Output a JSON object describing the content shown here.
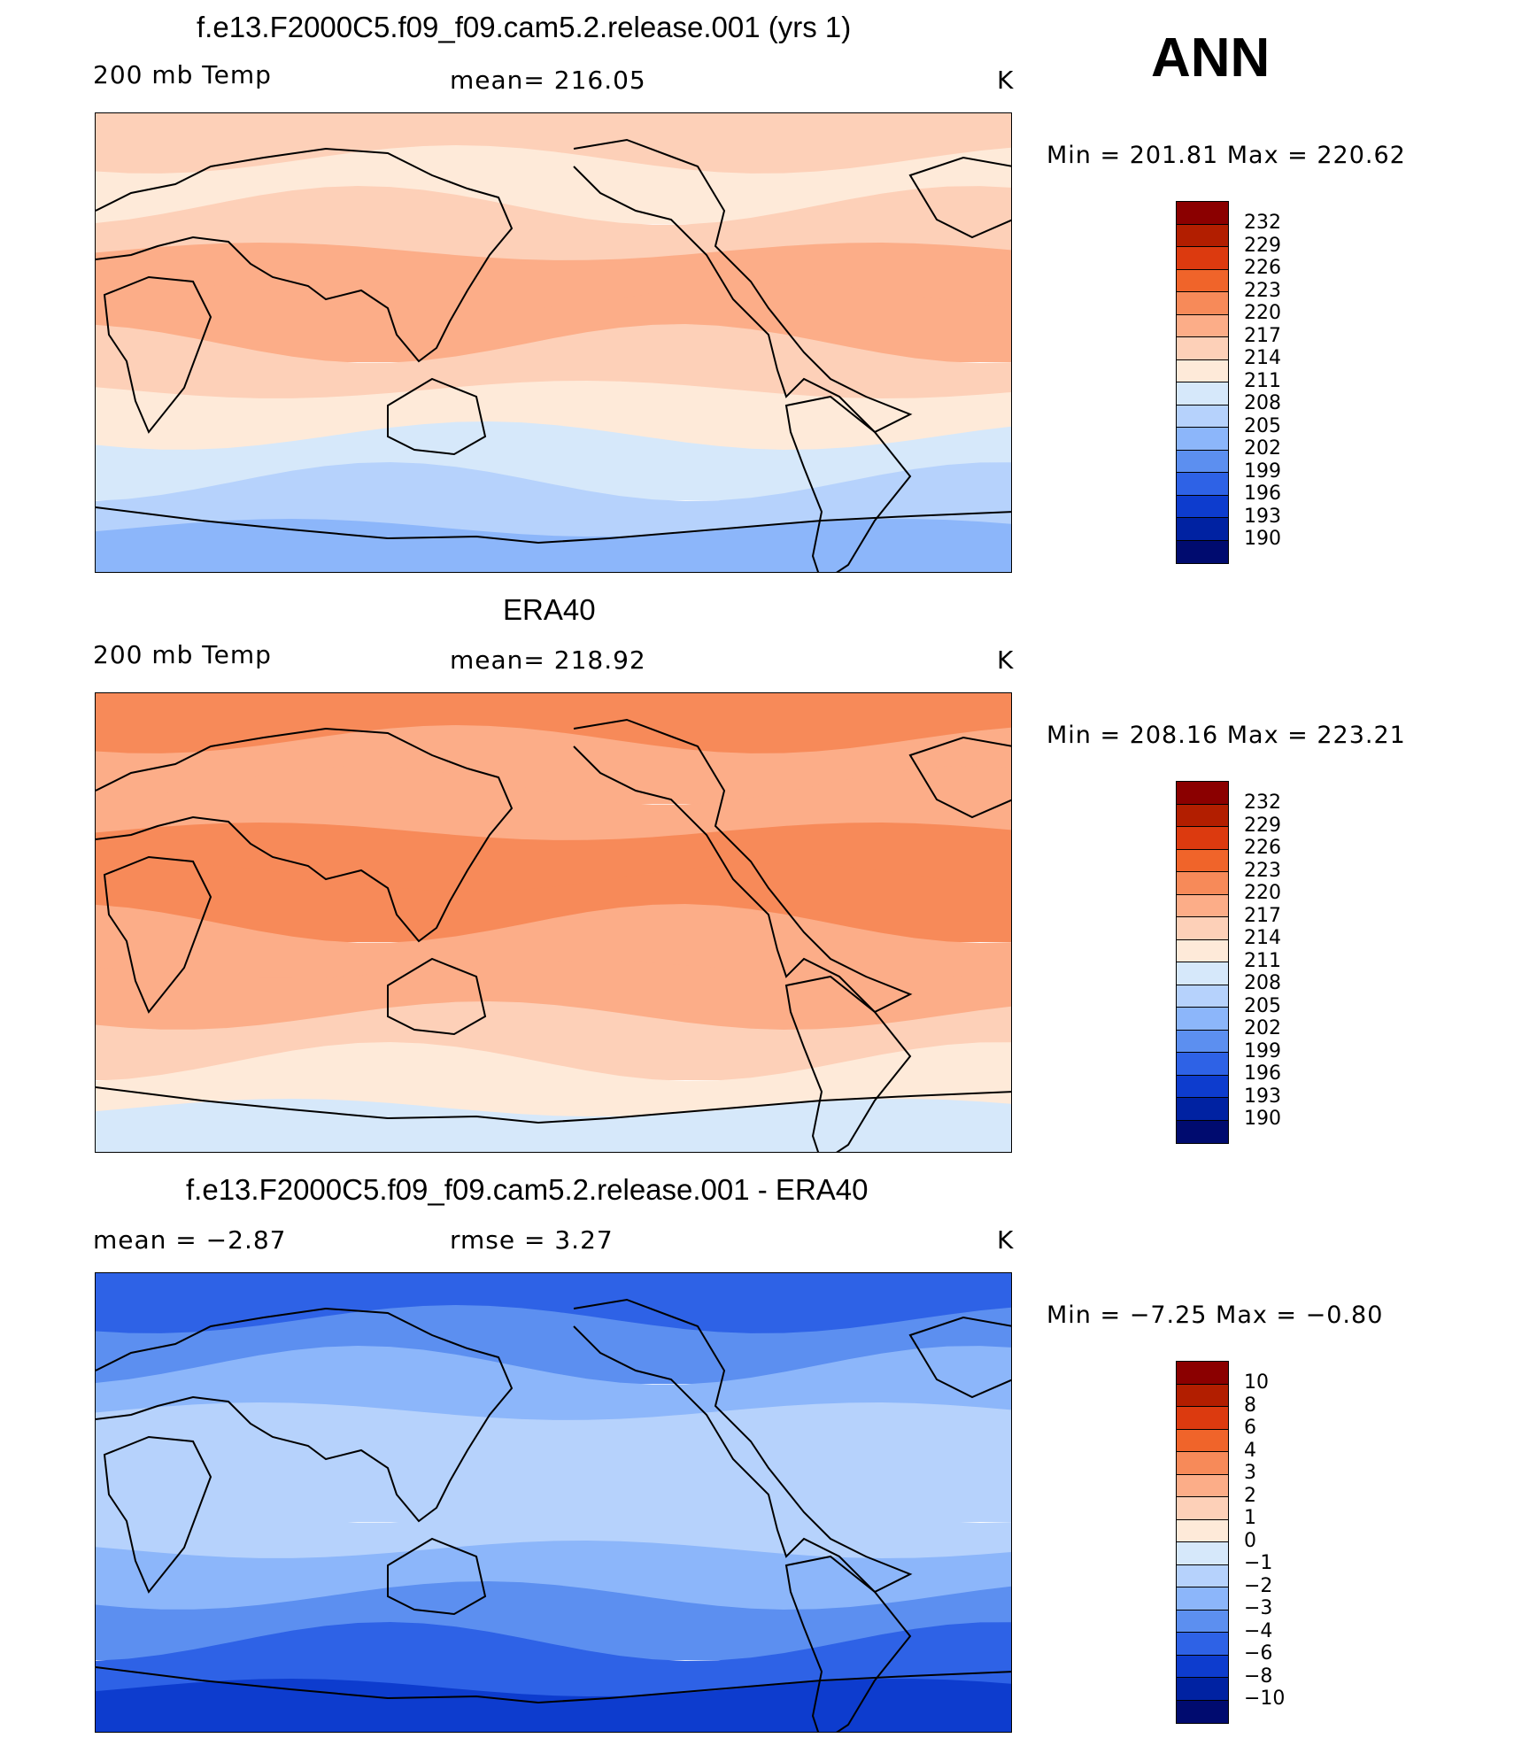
{
  "season": "ANN",
  "panels": [
    {
      "title": "f.e13.F2000C5.f09_f09.cam5.2.release.001 (yrs 1)",
      "left_label": "200 mb Temp",
      "center_label": "mean= 216.05",
      "units": "K",
      "minmax": "Min = 201.81 Max = 220.62",
      "colorbar": {
        "labels": [
          "232",
          "229",
          "226",
          "223",
          "220",
          "217",
          "214",
          "211",
          "208",
          "205",
          "202",
          "199",
          "196",
          "193",
          "190"
        ],
        "colors": [
          "#8B0000",
          "#B21E00",
          "#DC3A0F",
          "#F0642A",
          "#F78A59",
          "#FCAD88",
          "#FDD0B8",
          "#FEEAD9",
          "#D6E8FA",
          "#B6D2FC",
          "#8CB6FA",
          "#5C8FF0",
          "#2E62E6",
          "#0D3CCE",
          "#0022A2",
          "#000B6F"
        ]
      },
      "map": {
        "bands": [
          "#FDD0B8",
          "#FEEAD9",
          "#FDD0B8",
          "#FCAD88",
          "#FCAD88",
          "#FDD0B8",
          "#FEEAD9",
          "#D6E8FA",
          "#B6D2FC",
          "#8CB6FA"
        ]
      }
    },
    {
      "title": "ERA40",
      "left_label": "200 mb Temp",
      "center_label": "mean= 218.92",
      "units": "K",
      "minmax": "Min = 208.16 Max = 223.21",
      "colorbar": {
        "labels": [
          "232",
          "229",
          "226",
          "223",
          "220",
          "217",
          "214",
          "211",
          "208",
          "205",
          "202",
          "199",
          "196",
          "193",
          "190"
        ],
        "colors": [
          "#8B0000",
          "#B21E00",
          "#DC3A0F",
          "#F0642A",
          "#F78A59",
          "#FCAD88",
          "#FDD0B8",
          "#FEEAD9",
          "#D6E8FA",
          "#B6D2FC",
          "#8CB6FA",
          "#5C8FF0",
          "#2E62E6",
          "#0D3CCE",
          "#0022A2",
          "#000B6F"
        ]
      },
      "map": {
        "bands": [
          "#F78A59",
          "#FCAD88",
          "#FCAD88",
          "#F78A59",
          "#F78A59",
          "#FCAD88",
          "#FCAD88",
          "#FDD0B8",
          "#FEEAD9",
          "#D6E8FA"
        ]
      }
    },
    {
      "title": "f.e13.F2000C5.f09_f09.cam5.2.release.001 - ERA40",
      "left_label": "mean =   −2.87",
      "center_label": "rmse =    3.27",
      "units": "K",
      "minmax": "Min =  −7.25 Max =   −0.80",
      "colorbar": {
        "labels": [
          "10",
          "8",
          "6",
          "4",
          "3",
          "2",
          "1",
          "0",
          "−1",
          "−2",
          "−3",
          "−4",
          "−6",
          "−8",
          "−10"
        ],
        "colors": [
          "#8B0000",
          "#B21E00",
          "#DC3A0F",
          "#F0642A",
          "#F78A59",
          "#FCAD88",
          "#FDD0B8",
          "#FEEAD9",
          "#D6E8FA",
          "#B6D2FC",
          "#8CB6FA",
          "#5C8FF0",
          "#2E62E6",
          "#0D3CCE",
          "#0022A2",
          "#000B6F"
        ]
      },
      "map": {
        "bands": [
          "#2E62E6",
          "#5C8FF0",
          "#8CB6FA",
          "#B6D2FC",
          "#B6D2FC",
          "#B6D2FC",
          "#8CB6FA",
          "#5C8FF0",
          "#2E62E6",
          "#0D3CCE"
        ]
      }
    }
  ]
}
